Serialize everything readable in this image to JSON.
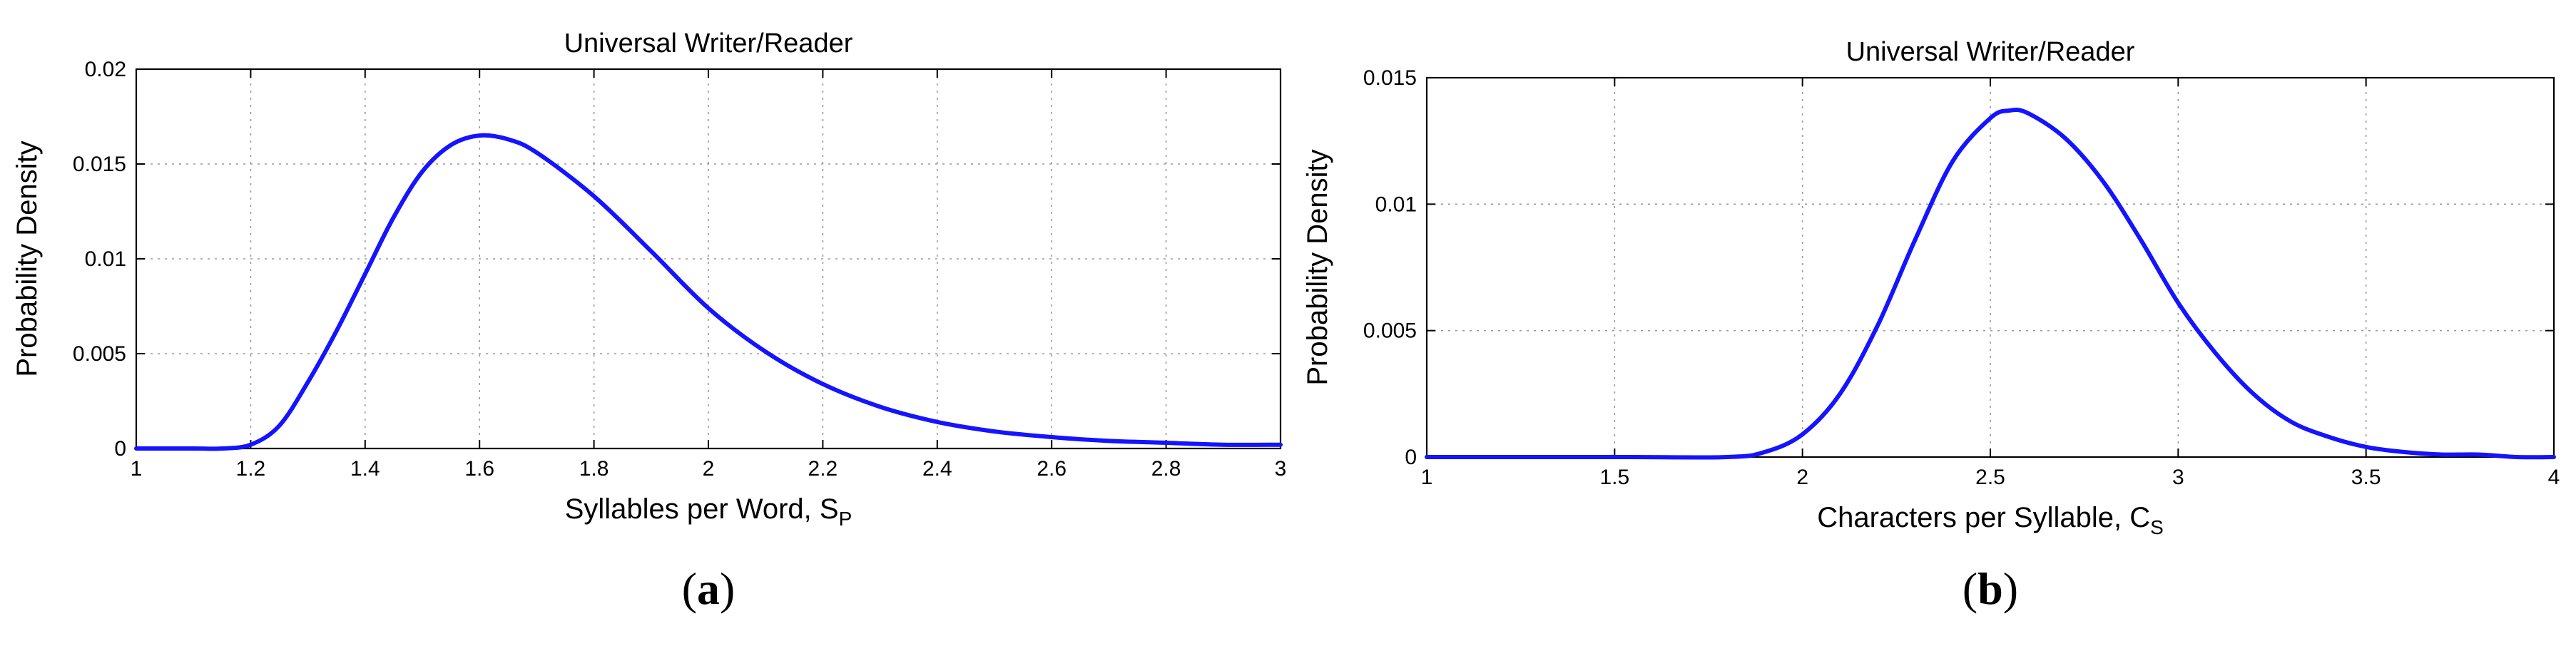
{
  "chart_data": [
    {
      "type": "line",
      "title": "Universal Writer/Reader",
      "xlabel_main": "Syllables per Word, S",
      "xlabel_sub": "P",
      "ylabel": "Probability Density",
      "caption": {
        "open": "(",
        "letter": "a",
        "close": ")"
      },
      "xlim": [
        1,
        3
      ],
      "ylim": [
        0,
        0.02
      ],
      "xticks": [
        1,
        1.2,
        1.4,
        1.6,
        1.8,
        2,
        2.2,
        2.4,
        2.6,
        2.8,
        3
      ],
      "xtick_labels": [
        "1",
        "1.2",
        "1.4",
        "1.6",
        "1.8",
        "2",
        "2.2",
        "2.4",
        "2.6",
        "2.8",
        "3"
      ],
      "yticks": [
        0,
        0.005,
        0.01,
        0.015,
        0.02
      ],
      "ytick_labels": [
        "0",
        "0.005",
        "0.01",
        "0.015",
        "0.02"
      ],
      "grid": true,
      "series": [
        {
          "color": "#1414ff",
          "x": [
            1.0,
            1.1,
            1.15,
            1.2,
            1.25,
            1.3,
            1.35,
            1.4,
            1.45,
            1.5,
            1.55,
            1.6,
            1.65,
            1.7,
            1.8,
            1.9,
            2.0,
            2.1,
            2.2,
            2.3,
            2.4,
            2.5,
            2.6,
            2.7,
            2.8,
            2.9,
            3.0
          ],
          "y": [
            0.0,
            0.0,
            0.0,
            0.0002,
            0.0012,
            0.0035,
            0.0062,
            0.0092,
            0.0122,
            0.0146,
            0.016,
            0.0165,
            0.0163,
            0.0156,
            0.0133,
            0.0104,
            0.0074,
            0.0051,
            0.0034,
            0.0022,
            0.0014,
            0.0009,
            0.0006,
            0.0004,
            0.0003,
            0.0002,
            0.0002
          ]
        }
      ]
    },
    {
      "type": "line",
      "title": "Universal Writer/Reader",
      "xlabel_main": "Characters per Syllable, C",
      "xlabel_sub": "S",
      "ylabel": "Probability Density",
      "caption": {
        "open": "(",
        "letter": "b",
        "close": ")"
      },
      "xlim": [
        1,
        4
      ],
      "ylim": [
        0,
        0.015
      ],
      "xticks": [
        1,
        1.5,
        2,
        2.5,
        3,
        3.5,
        4
      ],
      "xtick_labels": [
        "1",
        "1.5",
        "2",
        "2.5",
        "3",
        "3.5",
        "4"
      ],
      "yticks": [
        0,
        0.005,
        0.01,
        0.015
      ],
      "ytick_labels": [
        "0",
        "0.005",
        "0.01",
        "0.015"
      ],
      "grid": true,
      "series": [
        {
          "color": "#1414ff",
          "x": [
            1.0,
            1.5,
            1.8,
            1.9,
            2.0,
            2.1,
            2.2,
            2.3,
            2.4,
            2.5,
            2.55,
            2.6,
            2.7,
            2.8,
            2.9,
            3.0,
            3.1,
            3.2,
            3.3,
            3.4,
            3.5,
            3.6,
            3.7,
            3.8,
            3.9,
            4.0
          ],
          "y": [
            0.0,
            0.0,
            0.0,
            0.0002,
            0.0009,
            0.0025,
            0.0052,
            0.0086,
            0.0117,
            0.0134,
            0.0137,
            0.0136,
            0.0126,
            0.0109,
            0.0086,
            0.0061,
            0.0041,
            0.0025,
            0.0014,
            0.0008,
            0.0004,
            0.0002,
            0.0001,
            0.0001,
            0.0,
            0.0
          ]
        }
      ]
    }
  ]
}
